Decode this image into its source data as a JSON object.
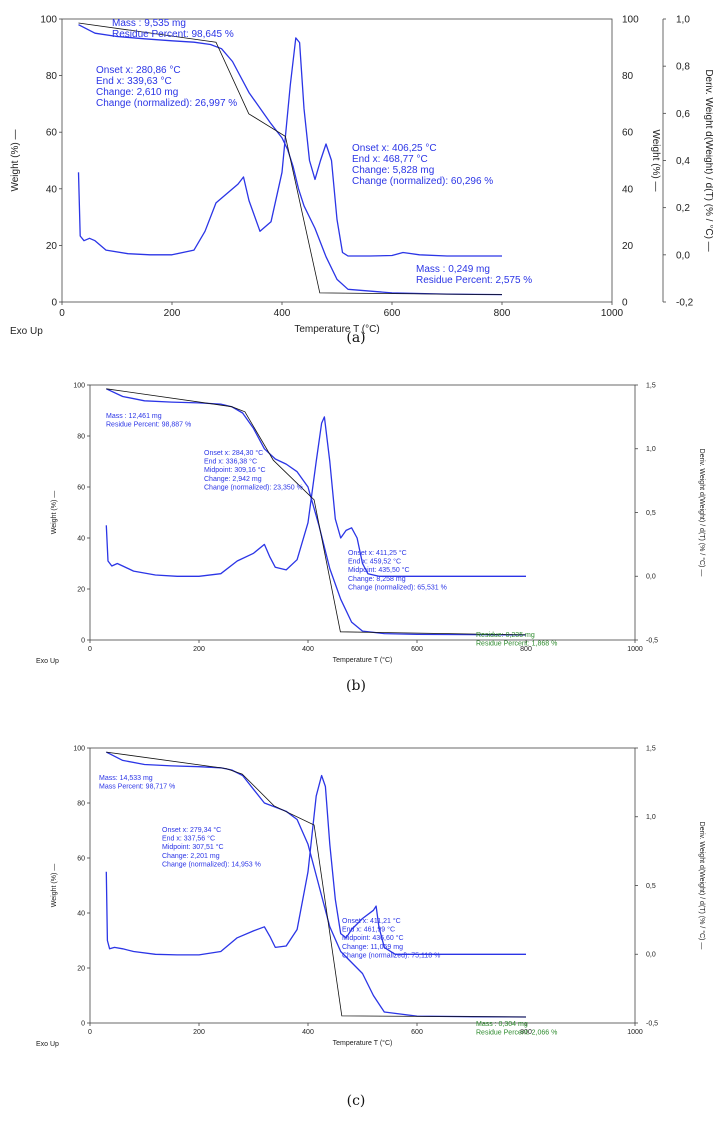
{
  "colors": {
    "curve": "#2b35e6",
    "tangent": "#111111",
    "annotation_blue": "#2b35e6",
    "annotation_green": "#2e8b2e",
    "axis": "#444444"
  },
  "chart_data": [
    {
      "type": "line",
      "panel": "a",
      "caption": "(a)",
      "xlabel": "Temperature T (°C)",
      "ylabel_left": "Weight (%) —",
      "ylabel_right1": "Weight (%) —",
      "ylabel_right2": "Deriv. Weight d(Weight) / d(T) (% / °C) —",
      "corner_label": "Exo Up",
      "xlim": [
        0,
        1000
      ],
      "xticks": [
        "0",
        "200",
        "400",
        "600",
        "800",
        "1000"
      ],
      "ylim_left": [
        0,
        100
      ],
      "yticks_left": [
        "0",
        "20",
        "40",
        "60",
        "80",
        "100"
      ],
      "yticks_right1": [
        "0",
        "20",
        "40",
        "60",
        "80",
        "100"
      ],
      "ylim_deriv": [
        -0.2,
        1.0
      ],
      "yticks_deriv": [
        "-0,2",
        "0,0",
        "0,2",
        "0,4",
        "0,6",
        "0,8",
        "1,0"
      ],
      "series": [
        {
          "role": "weight",
          "x": [
            30,
            60,
            100,
            150,
            200,
            240,
            270,
            290,
            310,
            340,
            380,
            400,
            410,
            420,
            430,
            440,
            450,
            460,
            480,
            500,
            520,
            600,
            700,
            800
          ],
          "y": [
            98,
            95,
            93.8,
            93,
            92.3,
            91.8,
            91,
            89.5,
            85,
            74,
            63,
            58,
            54,
            48,
            40,
            34,
            30,
            26,
            16,
            8,
            4.5,
            3.2,
            2.8,
            2.6
          ]
        },
        {
          "role": "derivative",
          "x": [
            30,
            33,
            40,
            50,
            60,
            80,
            120,
            160,
            200,
            240,
            260,
            280,
            300,
            320,
            330,
            340,
            360,
            380,
            400,
            415,
            425,
            432,
            440,
            450,
            460,
            470,
            480,
            490,
            500,
            510,
            520,
            560,
            600,
            620,
            650,
            700,
            800
          ],
          "y": [
            0.35,
            0.08,
            0.06,
            0.07,
            0.06,
            0.02,
            0.005,
            0.0,
            0.0,
            0.02,
            0.1,
            0.22,
            0.26,
            0.3,
            0.33,
            0.23,
            0.1,
            0.14,
            0.35,
            0.72,
            0.92,
            0.9,
            0.62,
            0.4,
            0.32,
            0.4,
            0.47,
            0.4,
            0.15,
            0.01,
            -0.005,
            -0.005,
            -0.003,
            0.01,
            0.0,
            -0.005,
            -0.005
          ]
        }
      ],
      "tangents": [
        [
          [
            30,
            98.6
          ],
          [
            280,
            91.8
          ],
          [
            339.63,
            66.5
          ],
          [
            406.25,
            58.5
          ],
          [
            468.77,
            3.2
          ],
          [
            800,
            2.6
          ]
        ]
      ],
      "annotations": [
        {
          "color": "blue",
          "lines": [
            "Mass : 9,535 mg",
            "Residue Percent: 98,645 %"
          ]
        },
        {
          "color": "blue",
          "lines": [
            "Onset x: 280,86 °C",
            "End x: 339,63 °C",
            "Change: 2,610 mg",
            "Change (normalized): 26,997 %"
          ]
        },
        {
          "color": "blue",
          "lines": [
            "Onset x: 406,25 °C",
            "End x: 468,77 °C",
            "Change: 5,828 mg",
            "Change (normalized): 60,296 %"
          ]
        },
        {
          "color": "blue",
          "lines": [
            "Mass : 0,249 mg",
            "Residue Percent: 2,575 %"
          ]
        }
      ]
    },
    {
      "type": "line",
      "panel": "b",
      "caption": "(b)",
      "xlabel": "Temperature T (°C)",
      "ylabel_left": "Weight (%) —",
      "ylabel_right2": "Deriv. Weight d(Weight) / d(T) (% / °C) —",
      "corner_label": "Exo Up",
      "xlim": [
        0,
        1000
      ],
      "xticks": [
        "0",
        "200",
        "400",
        "600",
        "800",
        "1000"
      ],
      "ylim_left": [
        0,
        100
      ],
      "yticks_left": [
        "0",
        "20",
        "40",
        "60",
        "80",
        "100"
      ],
      "ylim_deriv": [
        -0.5,
        1.5
      ],
      "yticks_deriv": [
        "-0,5",
        "0,0",
        "0,5",
        "1,0",
        "1,5"
      ],
      "series": [
        {
          "role": "weight",
          "x": [
            30,
            60,
            100,
            150,
            200,
            240,
            260,
            280,
            300,
            320,
            340,
            360,
            380,
            400,
            420,
            440,
            460,
            480,
            500,
            540,
            600,
            700,
            800
          ],
          "y": [
            98.5,
            95.5,
            93.8,
            93.3,
            93,
            92.5,
            91.5,
            89,
            83,
            75,
            71,
            69,
            66,
            60,
            45,
            28,
            16,
            7,
            3.5,
            2.5,
            2.2,
            2.1,
            2.0
          ]
        },
        {
          "role": "derivative",
          "x": [
            30,
            33,
            40,
            50,
            60,
            80,
            120,
            160,
            200,
            240,
            270,
            300,
            320,
            330,
            340,
            360,
            380,
            400,
            415,
            425,
            430,
            440,
            450,
            460,
            470,
            480,
            490,
            500,
            510,
            530,
            600,
            700,
            800
          ],
          "y": [
            0.4,
            0.12,
            0.08,
            0.1,
            0.08,
            0.04,
            0.01,
            0.0,
            0.0,
            0.02,
            0.12,
            0.18,
            0.25,
            0.15,
            0.07,
            0.05,
            0.13,
            0.42,
            0.9,
            1.2,
            1.25,
            0.9,
            0.45,
            0.3,
            0.36,
            0.38,
            0.3,
            0.1,
            0.02,
            0.0,
            0.0,
            0.0,
            0.0
          ]
        }
      ],
      "tangents": [
        [
          [
            30,
            98.5
          ],
          [
            260,
            91.5
          ],
          [
            284.3,
            89.5
          ],
          [
            336.38,
            70.5
          ],
          [
            411.25,
            55
          ],
          [
            459.52,
            3.2
          ],
          [
            800,
            2.0
          ]
        ]
      ],
      "annotations": [
        {
          "color": "blue",
          "lines": [
            "Mass : 12,461 mg",
            "Residue Percent: 98,887 %"
          ]
        },
        {
          "color": "blue",
          "lines": [
            "Onset x: 284,30 °C",
            "End x: 336,38 °C",
            "Midpoint: 309,16 °C",
            "Change: 2,942 mg",
            "Change (normalized): 23,350 %"
          ]
        },
        {
          "color": "blue",
          "lines": [
            "Onset x: 411,25 °C",
            "End x: 459,52 °C",
            "Midpoint: 435,50 °C",
            "Change: 8,258 mg",
            "Change (normalized): 65,531 %"
          ]
        },
        {
          "color": "green",
          "lines": [
            "Residue: 0,235 mg",
            "Residue Percent: 1,868 %"
          ]
        }
      ]
    },
    {
      "type": "line",
      "panel": "c",
      "caption": "(c)",
      "xlabel": "Temperature T (°C)",
      "ylabel_left": "Weight (%) —",
      "ylabel_right2": "Deriv. Weight d(Weight) / d(T) (% / °C) —",
      "corner_label": "Exo Up",
      "xlim": [
        0,
        1000
      ],
      "xticks": [
        "0",
        "200",
        "400",
        "600",
        "800",
        "1000"
      ],
      "ylim_left": [
        0,
        100
      ],
      "yticks_left": [
        "0",
        "20",
        "40",
        "60",
        "80",
        "100"
      ],
      "ylim_deriv": [
        -0.5,
        1.5
      ],
      "yticks_deriv": [
        "-0,5",
        "0,0",
        "0,5",
        "1,0",
        "1,5"
      ],
      "series": [
        {
          "role": "weight",
          "x": [
            30,
            60,
            100,
            150,
            200,
            240,
            260,
            280,
            300,
            320,
            340,
            360,
            380,
            400,
            420,
            440,
            460,
            480,
            500,
            520,
            540,
            600,
            700,
            800
          ],
          "y": [
            98.5,
            95.5,
            94,
            93.5,
            93.2,
            92.8,
            92,
            90,
            85,
            80,
            78.5,
            77,
            74,
            65,
            50,
            35,
            26,
            22,
            18,
            10,
            4,
            2.5,
            2.3,
            2.2
          ]
        },
        {
          "role": "derivative",
          "x": [
            30,
            32,
            36,
            45,
            60,
            80,
            120,
            160,
            200,
            240,
            270,
            300,
            320,
            330,
            340,
            360,
            380,
            400,
            415,
            425,
            432,
            440,
            450,
            460,
            470,
            480,
            500,
            520,
            525,
            530,
            540,
            560,
            600,
            700,
            800
          ],
          "y": [
            0.6,
            0.1,
            0.04,
            0.05,
            0.04,
            0.02,
            0.0,
            -0.005,
            -0.005,
            0.02,
            0.12,
            0.17,
            0.2,
            0.13,
            0.05,
            0.06,
            0.18,
            0.6,
            1.15,
            1.3,
            1.22,
            0.8,
            0.4,
            0.15,
            0.12,
            0.18,
            0.26,
            0.32,
            0.35,
            0.2,
            0.05,
            0.0,
            0.0,
            0.0,
            0.0
          ]
        }
      ],
      "tangents": [
        [
          [
            30,
            98.5
          ],
          [
            250,
            92.5
          ],
          [
            279.34,
            90.5
          ],
          [
            337.56,
            79
          ],
          [
            411.21,
            72
          ],
          [
            461.99,
            2.6
          ],
          [
            800,
            2.2
          ]
        ]
      ],
      "annotations": [
        {
          "color": "blue",
          "lines": [
            "Mass: 14,533 mg",
            "Mass Percent: 98,717 %"
          ]
        },
        {
          "color": "blue",
          "lines": [
            "Onset x: 279,34 °C",
            "End x: 337,56 °C",
            "Midpoint: 307,51 °C",
            "Change: 2,201 mg",
            "Change (normalized): 14,953 %"
          ]
        },
        {
          "color": "blue",
          "lines": [
            "Onset x: 411,21 °C",
            "End x: 461,99 °C",
            "Midpoint: 436,60 °C",
            "Change: 11,059 mg",
            "Change (normalized): 75,118 %"
          ]
        },
        {
          "color": "green",
          "lines": [
            "Mass : 0,304 mg",
            "Residue Percent: 2,066 %"
          ]
        }
      ]
    }
  ]
}
